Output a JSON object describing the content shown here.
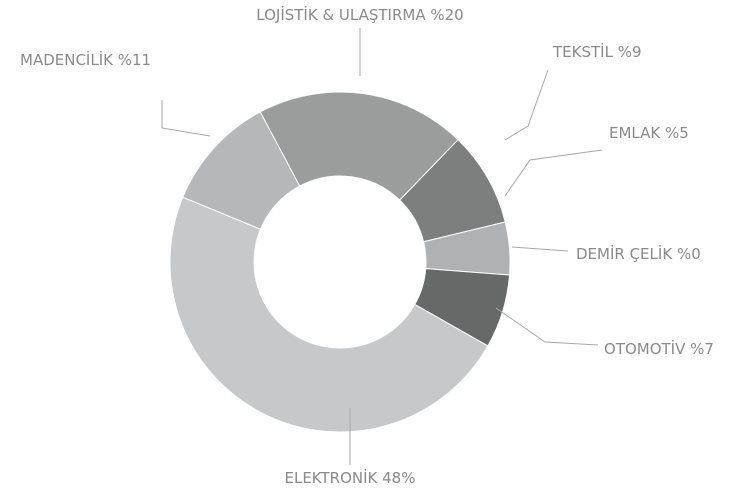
{
  "chart_data": {
    "type": "donut",
    "categories": [
      "LOJİSTİK & ULAŞTIRMA",
      "TEKSTİL",
      "EMLAK",
      "DEMİR ÇELİK",
      "OTOMOTİV",
      "ELEKTRONİK",
      "MADENCİLİK"
    ],
    "values": [
      20,
      9,
      5,
      0,
      7,
      48,
      11
    ],
    "value_labels": [
      "%20",
      "%9",
      "%5",
      "%0",
      "%7",
      "48%",
      "%11"
    ],
    "colors": [
      "#9b9d9d",
      "#7d7e7e",
      "#b0b1b2",
      "#c9cacb",
      "#676968",
      "#c6c8ca",
      "#b5b7b8"
    ]
  }
}
